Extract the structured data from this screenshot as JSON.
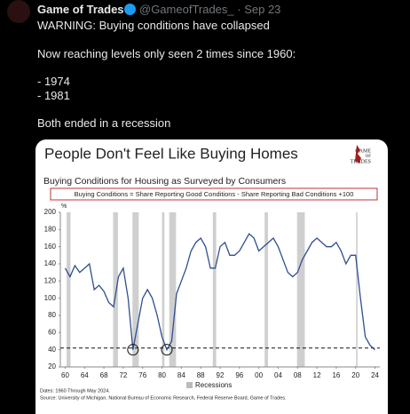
{
  "tweet": {
    "name": "Game of Trades",
    "handle": "@GameofTrades_ · Sep 23",
    "lines": [
      "WARNING: Buying conditions have collapsed",
      "Now reaching levels only seen 2 times since 1960:",
      "- 1974",
      "- 1981",
      "Both ended in a recession"
    ]
  },
  "chart_data": {
    "type": "line",
    "title": "People Don't Feel Like Buying Homes",
    "logo_text": [
      "GAME",
      "OF",
      "TRADES"
    ],
    "subtitle": "Buying Conditions for Housing as Surveyed by Consumers",
    "formula": "Buying Conditions = Share Reporting Good Conditions - Share Reporting Bad Conditions +100",
    "ylabel": "%",
    "x": [
      1960,
      1961,
      1962,
      1963,
      1964,
      1965,
      1966,
      1967,
      1968,
      1969,
      1970,
      1971,
      1972,
      1973,
      1974,
      1975,
      1976,
      1977,
      1978,
      1979,
      1980,
      1981,
      1982,
      1983,
      1984,
      1985,
      1986,
      1987,
      1988,
      1989,
      1990,
      1991,
      1992,
      1993,
      1994,
      1995,
      1996,
      1997,
      1998,
      1999,
      2000,
      2001,
      2002,
      2003,
      2004,
      2005,
      2006,
      2007,
      2008,
      2009,
      2010,
      2011,
      2012,
      2013,
      2014,
      2015,
      2016,
      2017,
      2018,
      2019,
      2020,
      2021,
      2022,
      2023,
      2024
    ],
    "series": [
      {
        "name": "Buying Conditions",
        "color": "#2f4f8f",
        "values": [
          135,
          125,
          138,
          130,
          135,
          140,
          110,
          115,
          108,
          95,
          90,
          125,
          135,
          100,
          40,
          70,
          100,
          110,
          100,
          80,
          55,
          40,
          50,
          105,
          120,
          135,
          155,
          165,
          170,
          160,
          135,
          135,
          160,
          165,
          150,
          150,
          155,
          165,
          175,
          170,
          155,
          160,
          165,
          170,
          160,
          145,
          130,
          125,
          130,
          145,
          155,
          165,
          170,
          165,
          160,
          160,
          165,
          155,
          140,
          150,
          150,
          100,
          55,
          45,
          40
        ]
      }
    ],
    "recessions": [
      [
        1960.3,
        1961.1
      ],
      [
        1969.9,
        1970.9
      ],
      [
        1973.9,
        1975.2
      ],
      [
        1980.0,
        1980.5
      ],
      [
        1981.5,
        1982.9
      ],
      [
        1990.5,
        1991.2
      ],
      [
        2001.2,
        2001.9
      ],
      [
        2007.9,
        2009.5
      ],
      [
        2020.1,
        2020.4
      ]
    ],
    "legend": "Recessions",
    "reference_line": 42,
    "highlight": [
      14,
      21
    ],
    "xlim": [
      1959,
      2025
    ],
    "ylim": [
      20,
      200
    ],
    "xticks": [
      {
        "value": 1960,
        "label": "60"
      },
      {
        "value": 1964,
        "label": "64"
      },
      {
        "value": 1968,
        "label": "68"
      },
      {
        "value": 1972,
        "label": "72"
      },
      {
        "value": 1976,
        "label": "76"
      },
      {
        "value": 1980,
        "label": "80"
      },
      {
        "value": 1984,
        "label": "84"
      },
      {
        "value": 1988,
        "label": "88"
      },
      {
        "value": 1992,
        "label": "92"
      },
      {
        "value": 1996,
        "label": "96"
      },
      {
        "value": 2000,
        "label": "00"
      },
      {
        "value": 2004,
        "label": "04"
      },
      {
        "value": 2008,
        "label": "08"
      },
      {
        "value": 2012,
        "label": "12"
      },
      {
        "value": 2016,
        "label": "16"
      },
      {
        "value": 2020,
        "label": "20"
      },
      {
        "value": 2024,
        "label": "24"
      }
    ],
    "yticks": [
      20,
      40,
      60,
      80,
      100,
      120,
      140,
      160,
      180,
      200
    ],
    "notes": [
      "Dates: 1960 Through May 2024.",
      "Source: University of Michigan, National Bureau of Economic Research, Federal Reserve Board, Game of Trades."
    ]
  }
}
